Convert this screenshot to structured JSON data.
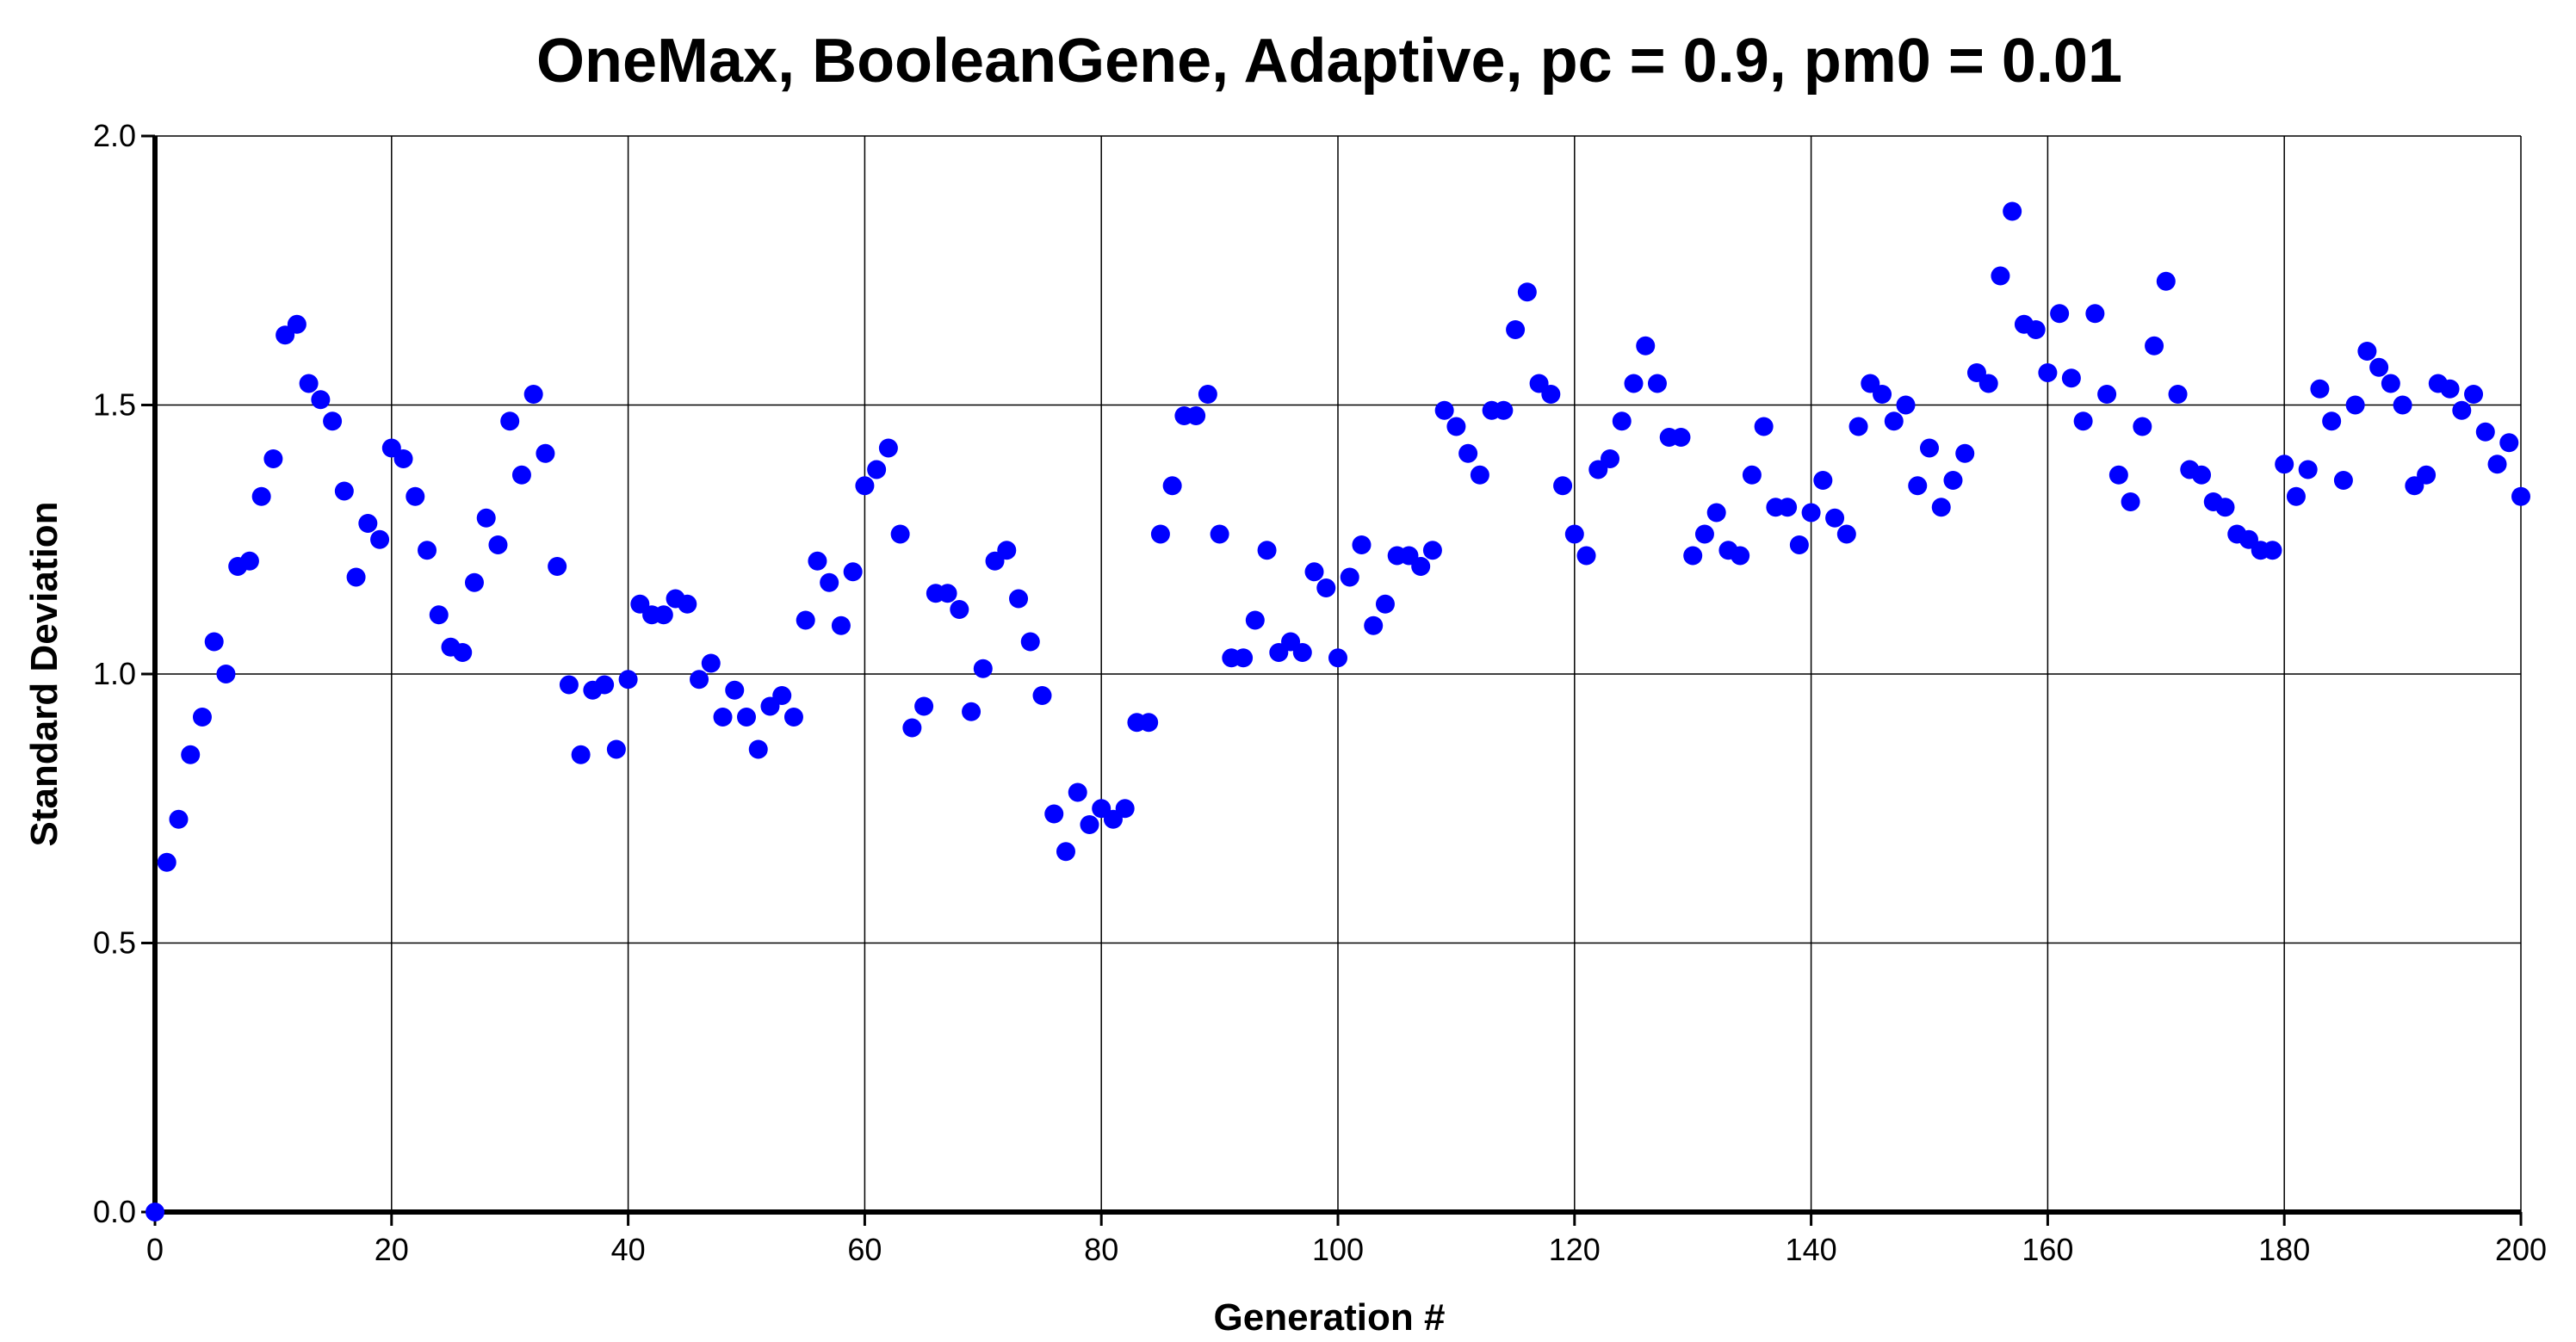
{
  "chart_data": {
    "type": "scatter",
    "title": "OneMax, BooleanGene, Adaptive, pc = 0.9, pm0 = 0.01",
    "xlabel": "Generation #",
    "ylabel": "Standard Deviation",
    "xlim": [
      0,
      200
    ],
    "ylim": [
      0,
      2.0
    ],
    "xticks": [
      0,
      20,
      40,
      60,
      80,
      100,
      120,
      140,
      160,
      180,
      200
    ],
    "yticks": [
      0.0,
      0.5,
      1.0,
      1.5,
      2.0
    ],
    "xtick_labels": [
      "0",
      "20",
      "40",
      "60",
      "80",
      "100",
      "120",
      "140",
      "160",
      "180",
      "200"
    ],
    "ytick_labels": [
      "0.0",
      "0.5",
      "1.0",
      "1.5",
      "2.0"
    ],
    "grid": true,
    "legend": "none",
    "marker_color": "#0000ff",
    "x": [
      0,
      1,
      2,
      3,
      4,
      5,
      6,
      7,
      8,
      9,
      10,
      11,
      12,
      13,
      14,
      15,
      16,
      17,
      18,
      19,
      20,
      21,
      22,
      23,
      24,
      25,
      26,
      27,
      28,
      29,
      30,
      31,
      32,
      33,
      34,
      35,
      36,
      37,
      38,
      39,
      40,
      41,
      42,
      43,
      44,
      45,
      46,
      47,
      48,
      49,
      50,
      51,
      52,
      53,
      54,
      55,
      56,
      57,
      58,
      59,
      60,
      61,
      62,
      63,
      64,
      65,
      66,
      67,
      68,
      69,
      70,
      71,
      72,
      73,
      74,
      75,
      76,
      77,
      78,
      79,
      80,
      81,
      82,
      83,
      84,
      85,
      86,
      87,
      88,
      89,
      90,
      91,
      92,
      93,
      94,
      95,
      96,
      97,
      98,
      99,
      100,
      101,
      102,
      103,
      104,
      105,
      106,
      107,
      108,
      109,
      110,
      111,
      112,
      113,
      114,
      115,
      116,
      117,
      118,
      119,
      120,
      121,
      122,
      123,
      124,
      125,
      126,
      127,
      128,
      129,
      130,
      131,
      132,
      133,
      134,
      135,
      136,
      137,
      138,
      139,
      140,
      141,
      142,
      143,
      144,
      145,
      146,
      147,
      148,
      149,
      150,
      151,
      152,
      153,
      154,
      155,
      156,
      157,
      158,
      159,
      160,
      161,
      162,
      163,
      164,
      165,
      166,
      167,
      168,
      169,
      170,
      171,
      172,
      173,
      174,
      175,
      176,
      177,
      178,
      179,
      180,
      181,
      182,
      183,
      184,
      185,
      186,
      187,
      188,
      189,
      190,
      191,
      192,
      193,
      194,
      195,
      196,
      197,
      198,
      199,
      200
    ],
    "y": [
      0.0,
      0.65,
      0.73,
      0.85,
      0.92,
      1.06,
      1.0,
      1.2,
      1.21,
      1.33,
      1.4,
      1.63,
      1.65,
      1.54,
      1.51,
      1.47,
      1.34,
      1.18,
      1.28,
      1.25,
      1.42,
      1.4,
      1.33,
      1.23,
      1.11,
      1.05,
      1.04,
      1.17,
      1.29,
      1.24,
      1.47,
      1.37,
      1.52,
      1.41,
      1.2,
      0.98,
      0.85,
      0.97,
      0.98,
      0.86,
      0.99,
      1.13,
      1.11,
      1.11,
      1.14,
      1.13,
      0.99,
      1.02,
      0.92,
      0.97,
      0.92,
      0.86,
      0.94,
      0.96,
      0.92,
      1.1,
      1.21,
      1.17,
      1.09,
      1.19,
      1.35,
      1.38,
      1.42,
      1.26,
      0.9,
      0.94,
      1.15,
      1.15,
      1.12,
      0.93,
      1.01,
      1.21,
      1.23,
      1.14,
      1.06,
      0.96,
      0.74,
      0.67,
      0.78,
      0.72,
      0.75,
      0.73,
      0.75,
      0.91,
      0.91,
      1.26,
      1.35,
      1.48,
      1.48,
      1.52,
      1.26,
      1.03,
      1.03,
      1.1,
      1.23,
      1.04,
      1.06,
      1.04,
      1.19,
      1.16,
      1.03,
      1.18,
      1.24,
      1.09,
      1.13,
      1.22,
      1.22,
      1.2,
      1.23,
      1.49,
      1.46,
      1.41,
      1.37,
      1.49,
      1.49,
      1.64,
      1.71,
      1.54,
      1.52,
      1.35,
      1.26,
      1.22,
      1.38,
      1.4,
      1.47,
      1.54,
      1.61,
      1.54,
      1.44,
      1.44,
      1.22,
      1.26,
      1.3,
      1.23,
      1.22,
      1.37,
      1.46,
      1.31,
      1.31,
      1.24,
      1.3,
      1.36,
      1.29,
      1.26,
      1.46,
      1.54,
      1.52,
      1.47,
      1.5,
      1.35,
      1.42,
      1.31,
      1.36,
      1.41,
      1.56,
      1.54,
      1.74,
      1.86,
      1.65,
      1.64,
      1.56,
      1.67,
      1.55,
      1.47,
      1.67,
      1.52,
      1.37,
      1.32,
      1.46,
      1.61,
      1.73,
      1.52,
      1.38,
      1.37,
      1.32,
      1.31,
      1.26,
      1.25,
      1.23,
      1.23,
      1.39,
      1.33,
      1.38,
      1.53,
      1.47,
      1.36,
      1.5,
      1.6,
      1.57,
      1.54,
      1.5,
      1.35,
      1.37,
      1.54,
      1.53,
      1.49,
      1.52,
      1.45,
      1.39,
      1.43,
      1.33
    ]
  }
}
